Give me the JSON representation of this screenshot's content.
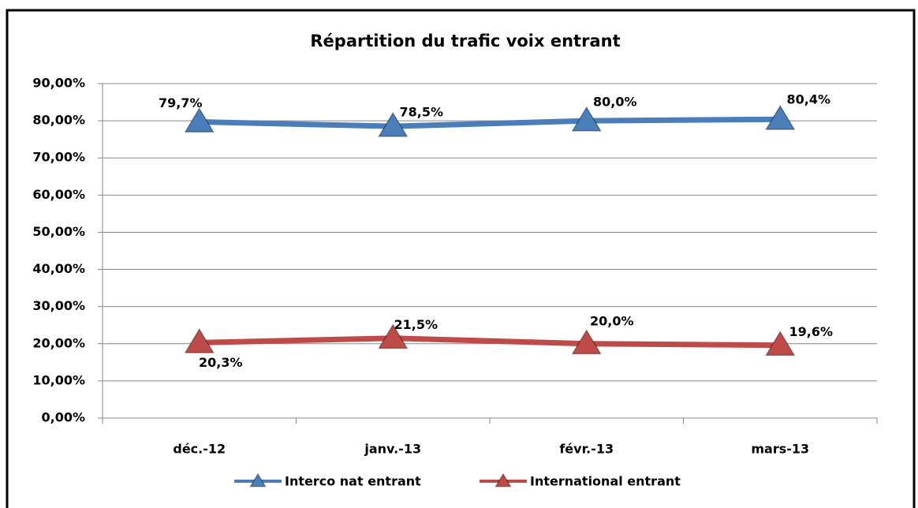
{
  "chart_data": {
    "type": "line",
    "title": "Répartition du trafic voix entrant",
    "categories": [
      "déc.-12",
      "janv.-13",
      "févr.-13",
      "mars-13"
    ],
    "series": [
      {
        "name": "Interco nat entrant",
        "color": "#4a7ebb",
        "values": [
          79.7,
          78.5,
          80.0,
          80.4
        ],
        "value_labels": [
          "79,7%",
          "78,5%",
          "80,0%",
          "80,4%"
        ]
      },
      {
        "name": "International entrant",
        "color": "#be4b48",
        "values": [
          20.3,
          21.5,
          20.0,
          19.6
        ],
        "value_labels": [
          "20,3%",
          "21,5%",
          "20,0%",
          "19,6%"
        ]
      }
    ],
    "ylim": [
      0,
      90
    ],
    "yticks": [
      {
        "value": 0,
        "label": "0,00%"
      },
      {
        "value": 10,
        "label": "10,00%"
      },
      {
        "value": 20,
        "label": "20,00%"
      },
      {
        "value": 30,
        "label": "30,00%"
      },
      {
        "value": 40,
        "label": "40,00%"
      },
      {
        "value": 50,
        "label": "50,00%"
      },
      {
        "value": 60,
        "label": "60,00%"
      },
      {
        "value": 70,
        "label": "70,00%"
      },
      {
        "value": 80,
        "label": "80,00%"
      },
      {
        "value": 90,
        "label": "90,00%"
      }
    ],
    "grid": true,
    "legend": "bottom"
  }
}
